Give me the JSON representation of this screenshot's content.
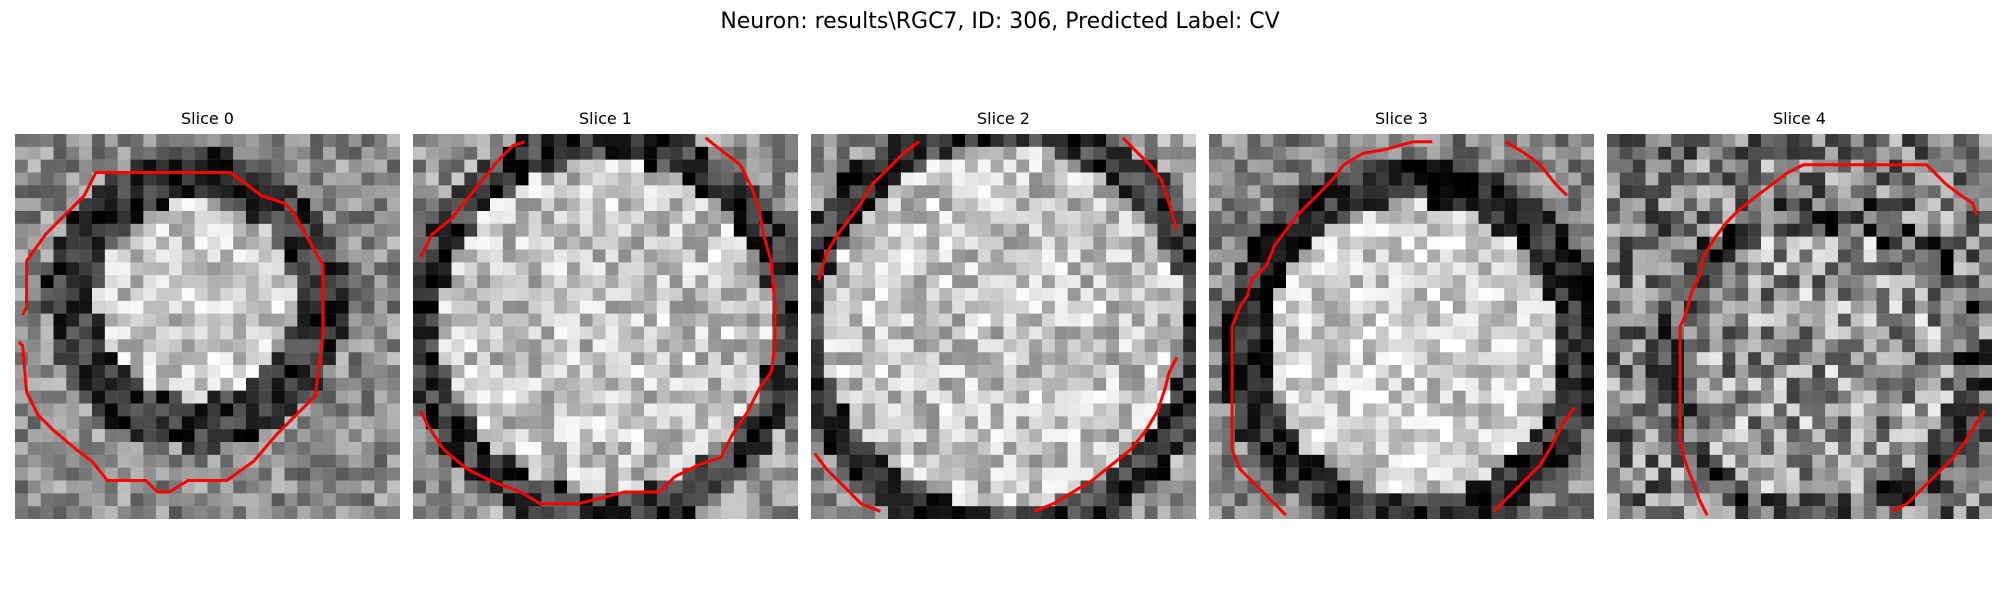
{
  "figure": {
    "title": "Neuron: results\\RGC7, ID: 306, Predicted Label: CV"
  },
  "slices": [
    {
      "title": "Slice 0",
      "contour_color": "#ff0000"
    },
    {
      "title": "Slice 1",
      "contour_color": "#ff0000"
    },
    {
      "title": "Slice 2",
      "contour_color": "#ff0000"
    },
    {
      "title": "Slice 3",
      "contour_color": "#ff0000"
    },
    {
      "title": "Slice 4",
      "contour_color": "#ff0000"
    }
  ],
  "colormap": "gray"
}
